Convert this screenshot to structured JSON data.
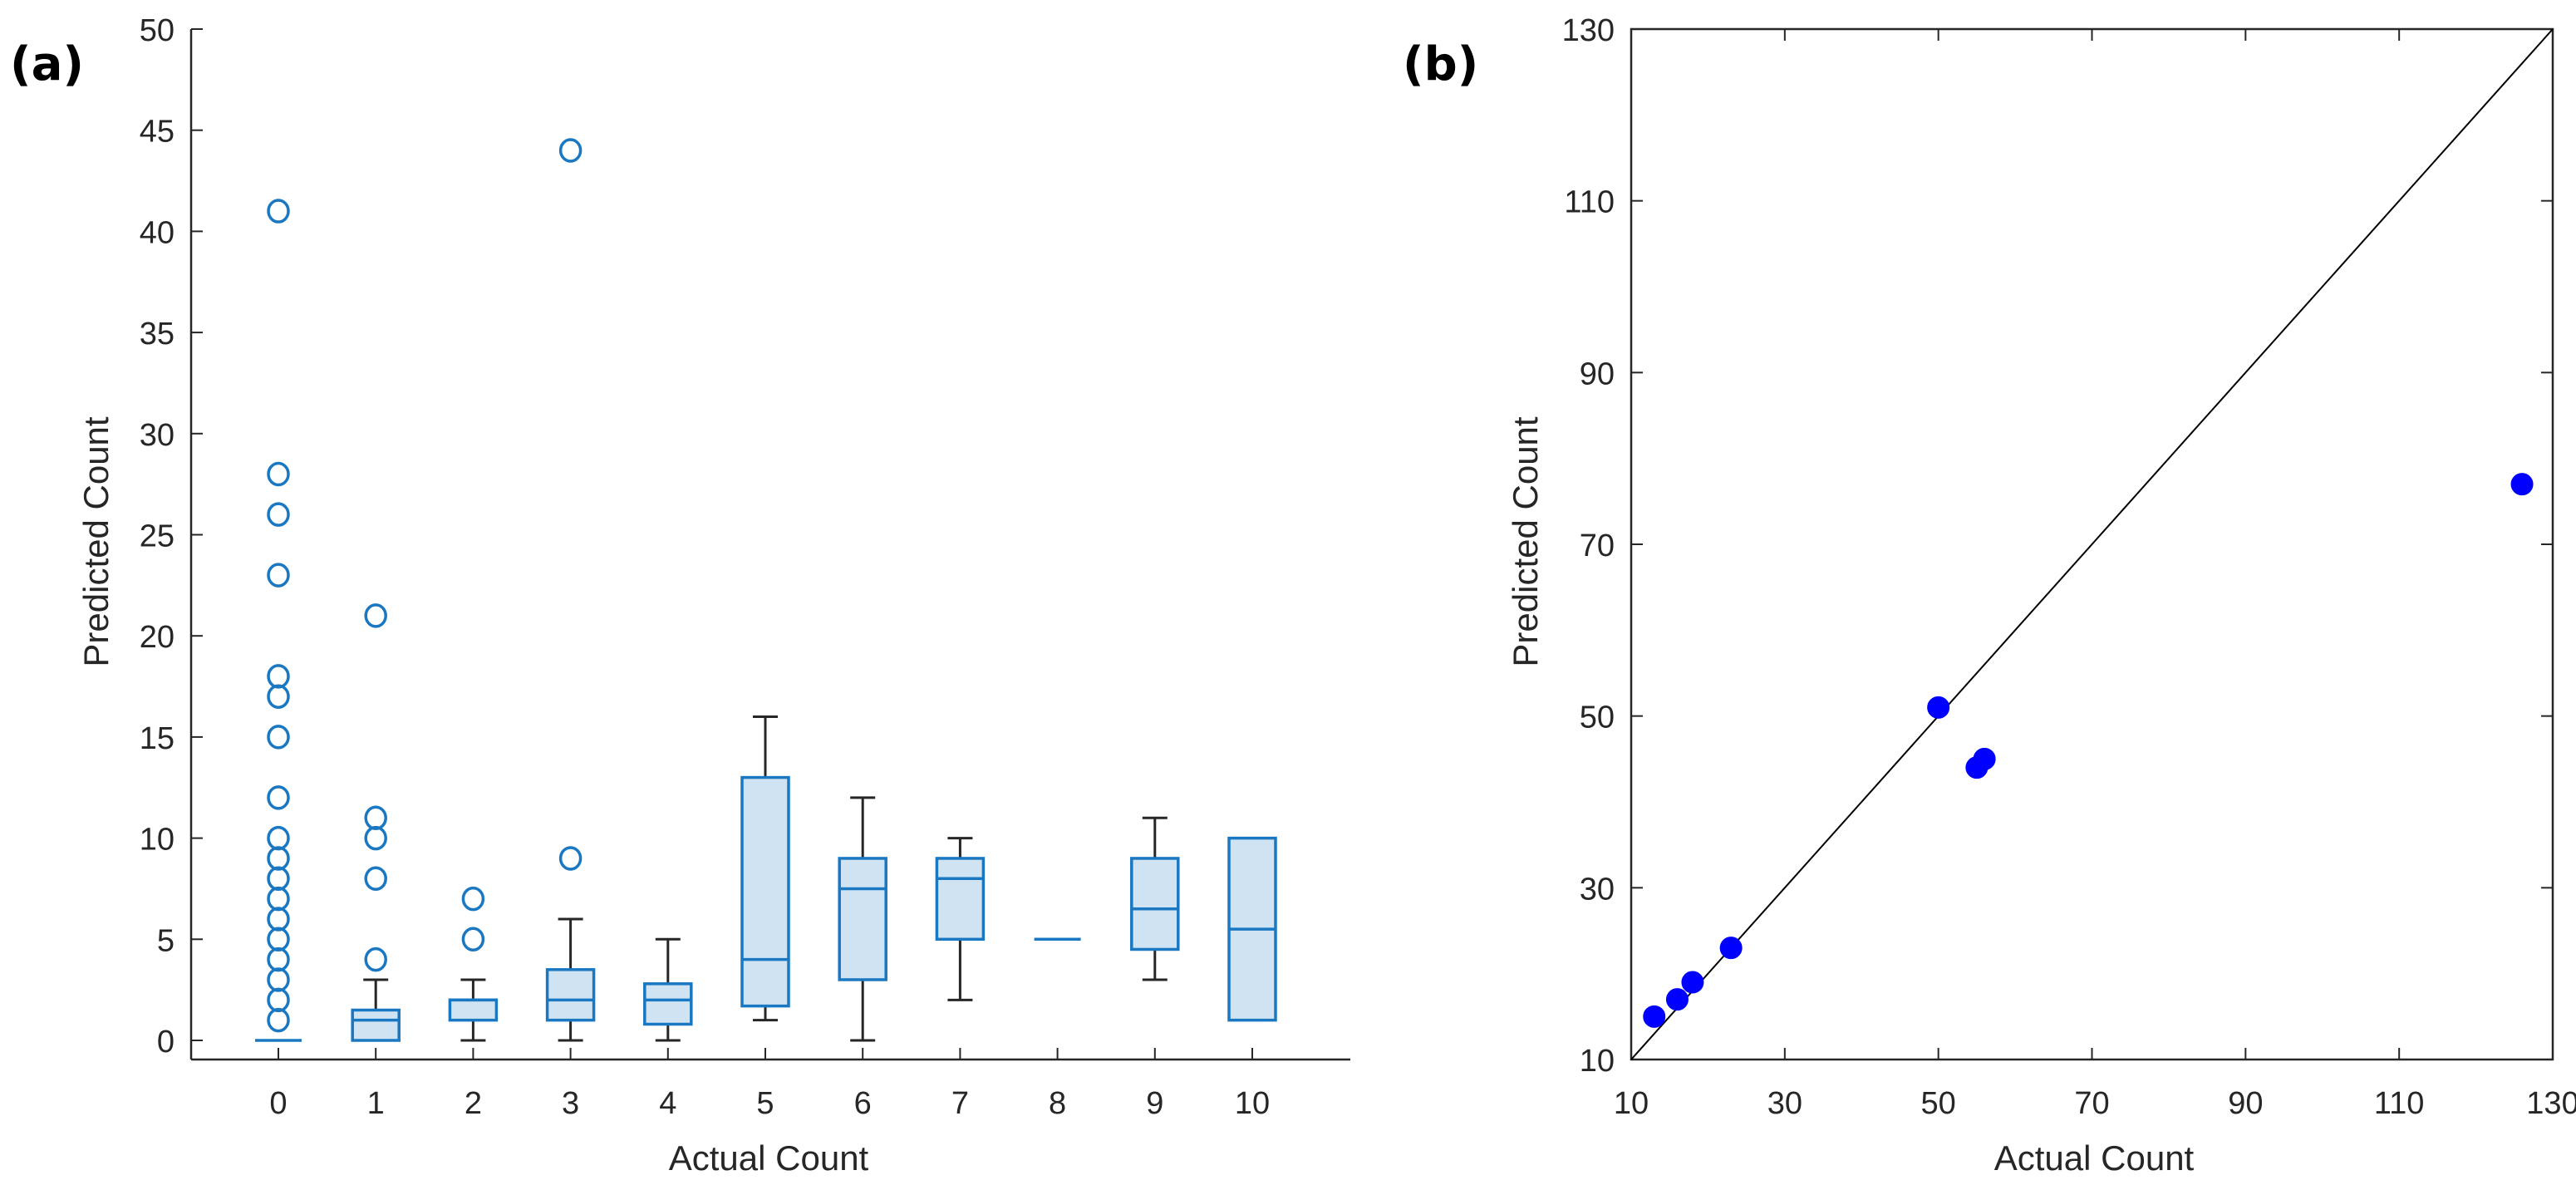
{
  "figure": {
    "colors": {
      "box_edge": "#1a78c2",
      "box_fill": "#cfe3f2",
      "whisker": "#262626",
      "scatter": "#0000ff",
      "axis": "#262626",
      "ref_line": "#000000"
    }
  },
  "chart_data": [
    {
      "panel_label": "(a)",
      "type": "box",
      "title": "",
      "xlabel": "Actual Count",
      "ylabel": "Predicted Count",
      "ylim": [
        0,
        50
      ],
      "xlim": [
        -0.5,
        10.5
      ],
      "yticks": [
        0,
        5,
        10,
        15,
        20,
        25,
        30,
        35,
        40,
        45,
        50
      ],
      "ytick_labels": [
        "0",
        "5",
        "10",
        "15",
        "20",
        "25",
        "30",
        "35",
        "40",
        "45",
        "50"
      ],
      "categories": [
        "0",
        "1",
        "2",
        "3",
        "4",
        "5",
        "6",
        "7",
        "8",
        "9",
        "10"
      ],
      "boxes": [
        {
          "category": "0",
          "q1": 0,
          "median": 0,
          "q3": 0,
          "whisker_low": 0,
          "whisker_high": 0,
          "outliers": [
            1,
            2,
            3,
            4,
            5,
            6,
            7,
            8,
            9,
            10,
            12,
            15,
            17,
            18,
            23,
            26,
            28,
            41
          ]
        },
        {
          "category": "1",
          "q1": 0,
          "median": 1,
          "q3": 1.5,
          "whisker_low": 0,
          "whisker_high": 3,
          "outliers": [
            4,
            8,
            10,
            11,
            21
          ]
        },
        {
          "category": "2",
          "q1": 1,
          "median": 2,
          "q3": 2,
          "whisker_low": 0,
          "whisker_high": 3,
          "outliers": [
            5,
            7
          ]
        },
        {
          "category": "3",
          "q1": 1,
          "median": 2,
          "q3": 3.5,
          "whisker_low": 0,
          "whisker_high": 6,
          "outliers": [
            9,
            44
          ]
        },
        {
          "category": "4",
          "q1": 0.8,
          "median": 2,
          "q3": 2.8,
          "whisker_low": 0,
          "whisker_high": 5,
          "outliers": []
        },
        {
          "category": "5",
          "q1": 1.7,
          "median": 4,
          "q3": 13,
          "whisker_low": 1,
          "whisker_high": 16,
          "outliers": []
        },
        {
          "category": "6",
          "q1": 3,
          "median": 7.5,
          "q3": 9,
          "whisker_low": 0,
          "whisker_high": 12,
          "outliers": []
        },
        {
          "category": "7",
          "q1": 5,
          "median": 8,
          "q3": 9,
          "whisker_low": 2,
          "whisker_high": 10,
          "outliers": []
        },
        {
          "category": "8",
          "q1": 5,
          "median": 5,
          "q3": 5,
          "whisker_low": 5,
          "whisker_high": 5,
          "outliers": []
        },
        {
          "category": "9",
          "q1": 4.5,
          "median": 6.5,
          "q3": 9,
          "whisker_low": 3,
          "whisker_high": 11,
          "outliers": []
        },
        {
          "category": "10",
          "q1": 1,
          "median": 5.5,
          "q3": 10,
          "whisker_low": 1,
          "whisker_high": 10,
          "outliers": []
        }
      ]
    },
    {
      "panel_label": "(b)",
      "type": "scatter",
      "title": "",
      "xlabel": "Actual Count",
      "ylabel": "Predicted Count",
      "xlim": [
        10,
        130
      ],
      "ylim": [
        10,
        130
      ],
      "xticks": [
        10,
        30,
        50,
        70,
        90,
        110,
        130
      ],
      "yticks": [
        10,
        30,
        50,
        70,
        90,
        110,
        130
      ],
      "xtick_labels": [
        "10",
        "30",
        "50",
        "70",
        "90",
        "110",
        "130"
      ],
      "ytick_labels": [
        "10",
        "30",
        "50",
        "70",
        "90",
        "110",
        "130"
      ],
      "reference_line": {
        "label": "y = x",
        "from": [
          10,
          10
        ],
        "to": [
          130,
          130
        ]
      },
      "points": [
        {
          "x": 13,
          "y": 15
        },
        {
          "x": 16,
          "y": 17
        },
        {
          "x": 18,
          "y": 19
        },
        {
          "x": 23,
          "y": 23
        },
        {
          "x": 50,
          "y": 51
        },
        {
          "x": 55,
          "y": 44
        },
        {
          "x": 56,
          "y": 45
        },
        {
          "x": 126,
          "y": 77
        }
      ]
    }
  ]
}
